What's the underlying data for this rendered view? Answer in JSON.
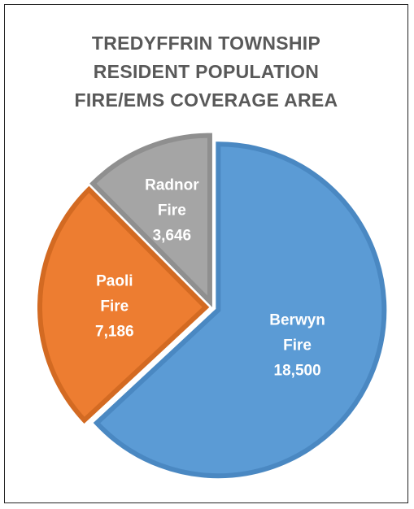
{
  "chart_data": {
    "type": "pie",
    "title_lines": [
      "TREDYFFRIN TOWNSHIP",
      "RESIDENT POPULATION",
      "FIRE/EMS COVERAGE AREA"
    ],
    "slices": [
      {
        "label": "Berwyn Fire",
        "value": 18500,
        "value_label": "18,500",
        "color": "#5b9bd5",
        "border": "#4a88c2",
        "label_lines": [
          "Berwyn",
          "Fire"
        ]
      },
      {
        "label": "Paoli Fire",
        "value": 7186,
        "value_label": "7,186",
        "color": "#ed7d31",
        "border": "#d36a22",
        "label_lines": [
          "Paoli",
          "Fire"
        ]
      },
      {
        "label": "Radnor Fire",
        "value": 3646,
        "value_label": "3,646",
        "color": "#a5a5a5",
        "border": "#8f8f8f",
        "label_lines": [
          "Radnor",
          "Fire"
        ]
      }
    ],
    "start_angle_deg": 0,
    "direction": "clockwise",
    "legend": "none",
    "exploded": true
  }
}
